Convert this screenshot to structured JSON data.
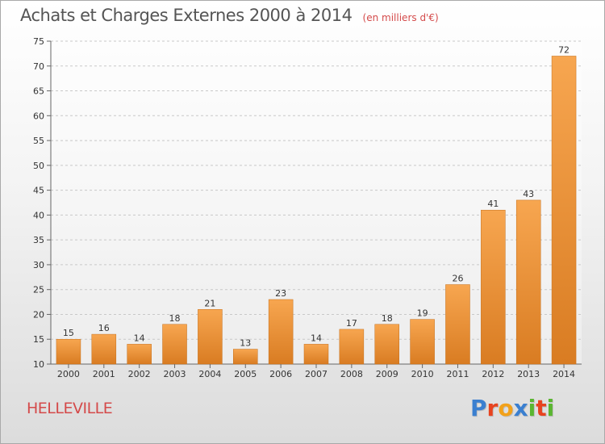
{
  "header": {
    "title": "Achats et Charges Externes 2000 à 2014",
    "subtitle": "(en milliers d'€)"
  },
  "footer": {
    "commune": "HELLEVILLE",
    "brand": "Proxiti",
    "brand_letters": [
      {
        "char": "P",
        "color": "#3a7fd0"
      },
      {
        "char": "r",
        "color": "#e8431f"
      },
      {
        "char": "o",
        "color": "#f2a11a"
      },
      {
        "char": "x",
        "color": "#3a7fd0"
      },
      {
        "char": "i",
        "color": "#5ab630"
      },
      {
        "char": "t",
        "color": "#e8431f"
      },
      {
        "char": "i",
        "color": "#5ab630"
      }
    ]
  },
  "colors": {
    "bar_light": "#f7a650",
    "bar_dark": "#d97c22",
    "grid": "#c8c8c8",
    "title": "#555555",
    "accent": "#d44a4a"
  },
  "chart_data": {
    "type": "bar",
    "title": "Achats et Charges Externes 2000 à 2014",
    "subtitle": "(en milliers d'€)",
    "categories": [
      "2000",
      "2001",
      "2002",
      "2003",
      "2004",
      "2005",
      "2006",
      "2007",
      "2008",
      "2009",
      "2010",
      "2011",
      "2012",
      "2013",
      "2014"
    ],
    "values": [
      15,
      16,
      14,
      18,
      21,
      13,
      23,
      14,
      17,
      18,
      19,
      26,
      41,
      43,
      72
    ],
    "data_labels": [
      "15",
      "16",
      "14",
      "18",
      "21",
      "13",
      "23",
      "14",
      "17",
      "18",
      "19",
      "26",
      "41",
      "43",
      "72"
    ],
    "ylim": [
      10,
      75
    ],
    "yticks": [
      10,
      15,
      20,
      25,
      30,
      35,
      40,
      45,
      50,
      55,
      60,
      65,
      70,
      75
    ],
    "xlabel": "",
    "ylabel": "",
    "grid": true,
    "legend": "none"
  }
}
